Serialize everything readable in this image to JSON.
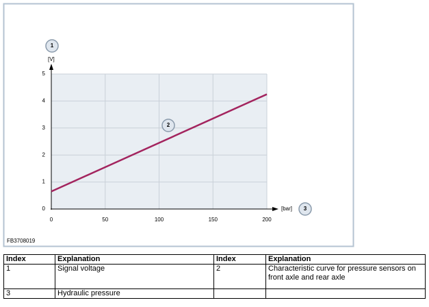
{
  "chart_data": {
    "type": "line",
    "y_label": "[V]",
    "x_label": "[bar]",
    "annotations": [
      "1",
      "2",
      "3"
    ],
    "figure_code": "FB3708019",
    "x": [
      0,
      200
    ],
    "series": [
      {
        "color": "#a3245e",
        "values": [
          0.65,
          4.25
        ]
      }
    ],
    "xlim": [
      0,
      200
    ],
    "xticks": [
      0,
      50,
      100,
      150,
      200
    ],
    "ylim": [
      0,
      5
    ],
    "yticks": [
      0,
      1,
      2,
      3,
      4,
      5
    ],
    "grid": true
  },
  "table": {
    "header": [
      "Index",
      "Explanation",
      "Index",
      "Explanation"
    ],
    "rows": [
      [
        "1",
        "Signal voltage",
        "2",
        "Characteristic curve for pressure sensors on front axle and rear axle"
      ],
      [
        "3",
        "Hydraulic pressure"
      ]
    ]
  }
}
